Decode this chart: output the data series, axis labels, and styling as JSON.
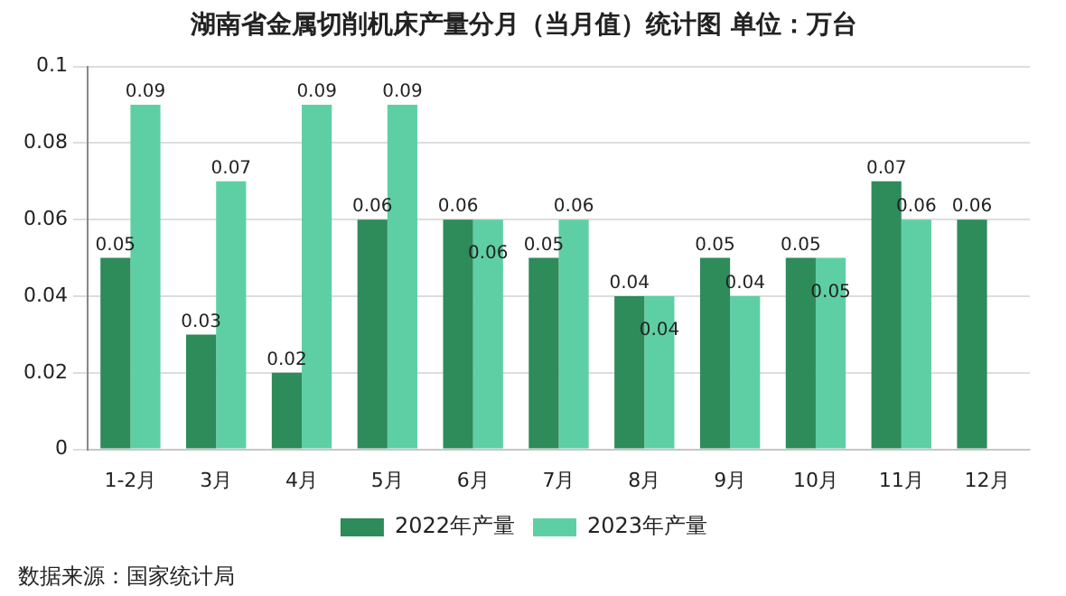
{
  "chart_data": {
    "type": "bar",
    "title": "湖南省金属切削机床产量分月（当月值）统计图 单位：万台",
    "categories": [
      "1-2月",
      "3月",
      "4月",
      "5月",
      "6月",
      "7月",
      "8月",
      "9月",
      "10月",
      "11月",
      "12月"
    ],
    "series": [
      {
        "name": "2022年产量",
        "color": "#2e8b5a",
        "values": [
          0.05,
          0.03,
          0.02,
          0.06,
          0.06,
          0.05,
          0.04,
          0.05,
          0.05,
          0.07,
          0.06
        ]
      },
      {
        "name": "2023年产量",
        "color": "#5ecfa4",
        "values": [
          0.09,
          0.07,
          0.09,
          0.09,
          0.06,
          0.06,
          0.04,
          0.04,
          0.05,
          0.06,
          null
        ]
      }
    ],
    "ylim": [
      0,
      0.1
    ],
    "yticks": [
      0,
      0.02,
      0.04,
      0.06,
      0.08,
      0.1
    ],
    "grid": "y",
    "legend": "bottom",
    "data_labels": true,
    "annotations": [
      "数据来源：国家统计局"
    ]
  }
}
